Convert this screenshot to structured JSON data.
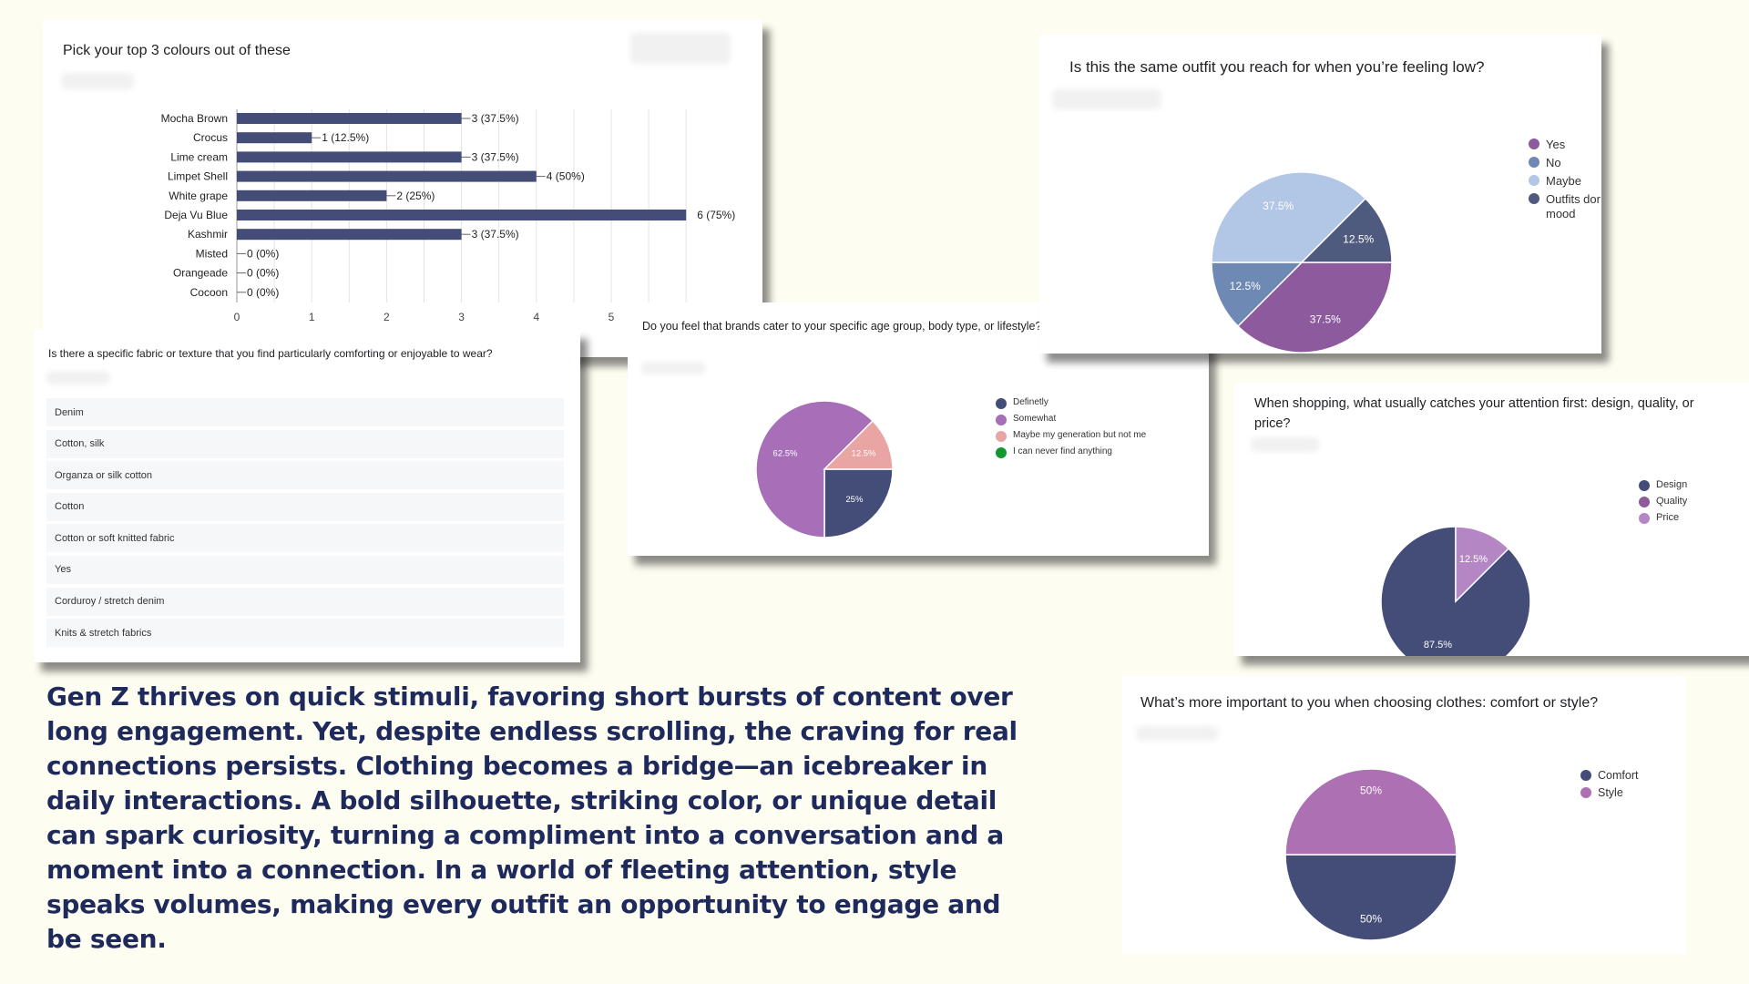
{
  "colors": {
    "navy": "#434d78",
    "purple": "#8e5a9e",
    "steel_blue": "#6e89b3",
    "light_blue": "#b2c6e6",
    "lavender": "#a66fb8",
    "light_purple": "#b487c4",
    "pink": "#e9a4a4",
    "green": "#149630",
    "mid_purple": "#ad70b2",
    "text_navy": "#1f2a5c",
    "background": "#fdfdf1"
  },
  "paragraph": "Gen Z thrives on quick stimuli, favoring short bursts of content over long engagement. Yet, despite endless scrolling, the craving for real connections persists. Clothing becomes a bridge—an icebreaker in daily interactions. A bold silhouette, striking color, or unique detail can spark curiosity, turning a compliment into a conversation and a moment into a connection. In a world of fleeting attention, style speaks volumes, making every outfit an opportunity to engage and be seen.",
  "fabric_card": {
    "question": "Is there a specific fabric or texture that you find particularly comforting or enjoyable to wear?",
    "responses": [
      "Denim",
      "Cotton, silk",
      "Organza or silk cotton",
      "Cotton",
      "Cotton or soft knitted fabric",
      "Yes",
      "Corduroy / stretch denim",
      "Knits & stretch fabrics"
    ]
  },
  "chart_data": [
    {
      "id": "colours",
      "type": "bar",
      "orientation": "horizontal",
      "title": "Pick your top 3 colours out of these",
      "categories": [
        "Mocha Brown",
        "Crocus",
        "Lime cream",
        "Limpet Shell",
        "White grape",
        "Deja Vu Blue",
        "Kashmir",
        "Misted",
        "Orangeade",
        "Cocoon"
      ],
      "values": [
        3,
        1,
        3,
        4,
        2,
        6,
        3,
        0,
        0,
        0
      ],
      "data_labels": [
        "3 (37.5%)",
        "1 (12.5%)",
        "3 (37.5%)",
        "4 (50%)",
        "2 (25%)",
        "6 (75%)",
        "3 (37.5%)",
        "0 (0%)",
        "0 (0%)",
        "0 (0%)"
      ],
      "xticks": [
        "0",
        "1",
        "2",
        "3",
        "4",
        "5"
      ],
      "xlim": [
        0,
        6
      ],
      "grid": true,
      "color": "#434d78"
    },
    {
      "id": "outfit_low",
      "type": "pie",
      "title": "Is this the same outfit you reach for when you’re feeling low?",
      "legend_position": "right",
      "legend": [
        "Yes",
        "No",
        "Maybe",
        "Outfits don't affect my mood"
      ],
      "legend_visible": [
        "Yes",
        "No",
        "Maybe",
        "Outfits dor",
        "mood"
      ],
      "values": [
        37.5,
        12.5,
        37.5,
        12.5
      ],
      "slice_labels": [
        "37.5%",
        "12.5%",
        "37.5%",
        "12.5%"
      ],
      "colors": [
        "#8e5a9e",
        "#6e89b3",
        "#b2c6e6",
        "#4f5a7f"
      ]
    },
    {
      "id": "brands",
      "type": "pie",
      "title": "Do you feel that brands cater to your specific age group, body type, or lifestyle?",
      "legend_position": "right",
      "legend": [
        "Definetly",
        "Somewhat",
        "Maybe my generation but not me",
        "I can never find anything"
      ],
      "values": [
        25,
        62.5,
        12.5,
        0
      ],
      "slice_labels": [
        "25%",
        "62.5%",
        "12.5%",
        ""
      ],
      "colors": [
        "#434d78",
        "#a66fb8",
        "#e9a4a4",
        "#149630"
      ]
    },
    {
      "id": "attention",
      "type": "pie",
      "title": "When shopping, what usually catches your attention first: design, quality, or price?",
      "legend_position": "right",
      "legend": [
        "Design",
        "Quality",
        "Price"
      ],
      "values": [
        87.5,
        0,
        12.5
      ],
      "slice_labels": [
        "87.5%",
        "",
        "12.5%"
      ],
      "colors": [
        "#434d78",
        "#8e5a9e",
        "#b487c4"
      ]
    },
    {
      "id": "comfort_style",
      "type": "pie",
      "title": "What’s more important to you when choosing clothes: comfort or style?",
      "legend_position": "right",
      "legend": [
        "Comfort",
        "Style"
      ],
      "values": [
        50,
        50
      ],
      "slice_labels": [
        "50%",
        "50%"
      ],
      "colors": [
        "#434d78",
        "#ad70b2"
      ]
    }
  ]
}
